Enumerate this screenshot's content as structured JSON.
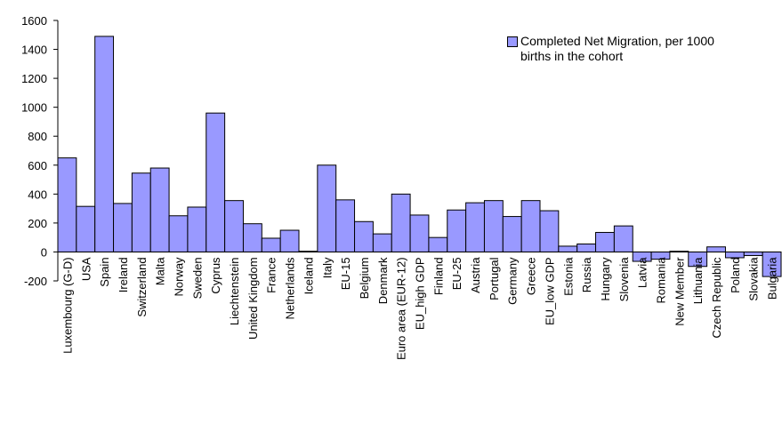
{
  "chart_data": {
    "type": "bar",
    "categories": [
      "Luxembourg (G-D)",
      "USA",
      "Spain",
      "Ireland",
      "Switzerland",
      "Malta",
      "Norway",
      "Sweden",
      "Cyprus",
      "Liechtenstein",
      "United Kingdom",
      "France",
      "Netherlands",
      "Iceland",
      "Italy",
      "EU-15",
      "Belgium",
      "Denmark",
      "Euro area (EUR-12)",
      "EU_high GDP",
      "Finland",
      "EU-25",
      "Austria",
      "Portugal",
      "Germany",
      "Greece",
      "EU_low GDP",
      "Estonia",
      "Russia",
      "Hungary",
      "Slovenia",
      "Latvia",
      "Romania",
      "New Member",
      "Lithuania",
      "Czech Republic",
      "Poland",
      "Slovakia",
      "Bulgaria"
    ],
    "series": [
      {
        "name": "Completed Net Migration, per 1000 births in the cohort",
        "color": "#9999ff",
        "values": [
          650,
          315,
          1490,
          335,
          545,
          580,
          250,
          310,
          960,
          355,
          195,
          95,
          150,
          5,
          600,
          360,
          210,
          125,
          400,
          255,
          100,
          290,
          340,
          355,
          245,
          355,
          285,
          40,
          55,
          135,
          180,
          -65,
          -50,
          5,
          -100,
          35,
          -40,
          -25,
          -170
        ]
      }
    ],
    "ylim": [
      -200,
      1600
    ],
    "yticks": [
      -200,
      0,
      200,
      400,
      600,
      800,
      1000,
      1200,
      1400,
      1600
    ],
    "grid": false,
    "legend": "top-right"
  }
}
